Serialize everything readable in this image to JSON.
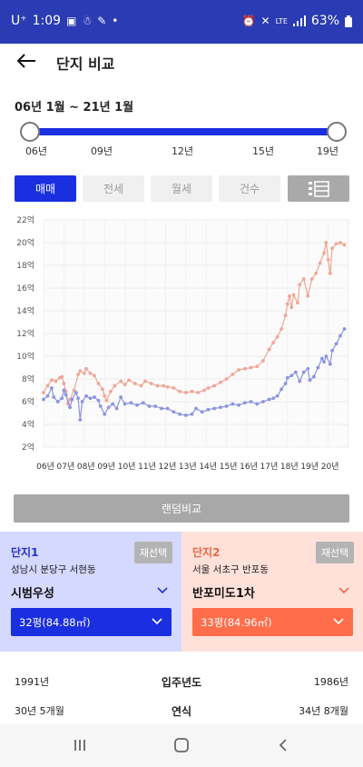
{
  "status_bar": {
    "carrier": "U⁺",
    "time": "1:09",
    "network": "LTE",
    "battery": "63%"
  },
  "app_bar": {
    "title": "단지 비교",
    "back_icon": "arrow-left-icon"
  },
  "range": {
    "label": "06년 1월 ~ 21년 1월",
    "ticks": [
      "06년",
      "09년",
      "12년",
      "15년",
      "19년"
    ]
  },
  "tabs": {
    "items": [
      "매매",
      "전세",
      "월세",
      "건수"
    ],
    "active": 0,
    "view_icon": "list-view-icon"
  },
  "chart_data": {
    "type": "line",
    "y_tick_labels": [
      "2억",
      "4억",
      "6억",
      "8억",
      "10억",
      "12억",
      "14억",
      "16억",
      "18억",
      "20억",
      "22억"
    ],
    "ylim": [
      2,
      22
    ],
    "x_tick_labels": [
      "06년",
      "07년",
      "08년",
      "09년",
      "10년",
      "11년",
      "12년",
      "13년",
      "14년",
      "15년",
      "16년",
      "17년",
      "18년",
      "19년",
      "20년"
    ],
    "xlim": [
      2006.0,
      2021.0
    ],
    "grid": true,
    "series": [
      {
        "color": "#f0a696",
        "points": [
          [
            2006.0,
            6.8
          ],
          [
            2006.2,
            7.4
          ],
          [
            2006.4,
            7.9
          ],
          [
            2006.6,
            7.8
          ],
          [
            2006.8,
            8.1
          ],
          [
            2006.9,
            8.2
          ],
          [
            2007.0,
            7.6
          ],
          [
            2007.1,
            6.9
          ],
          [
            2007.2,
            5.8
          ],
          [
            2007.3,
            6.2
          ],
          [
            2007.5,
            7.0
          ],
          [
            2007.7,
            8.4
          ],
          [
            2007.8,
            8.7
          ],
          [
            2008.0,
            8.5
          ],
          [
            2008.1,
            8.9
          ],
          [
            2008.3,
            8.5
          ],
          [
            2008.5,
            8.3
          ],
          [
            2008.7,
            7.6
          ],
          [
            2008.9,
            7.1
          ],
          [
            2009.0,
            6.5
          ],
          [
            2009.1,
            6.1
          ],
          [
            2009.3,
            6.9
          ],
          [
            2009.5,
            7.4
          ],
          [
            2009.8,
            7.8
          ],
          [
            2010.0,
            7.5
          ],
          [
            2010.2,
            7.9
          ],
          [
            2010.5,
            7.6
          ],
          [
            2010.8,
            7.4
          ],
          [
            2011.0,
            7.8
          ],
          [
            2011.3,
            7.6
          ],
          [
            2011.6,
            7.4
          ],
          [
            2011.9,
            7.4
          ],
          [
            2012.1,
            7.3
          ],
          [
            2012.4,
            7.2
          ],
          [
            2012.7,
            6.9
          ],
          [
            2013.0,
            6.8
          ],
          [
            2013.3,
            6.9
          ],
          [
            2013.6,
            6.8
          ],
          [
            2013.9,
            7.0
          ],
          [
            2014.1,
            7.2
          ],
          [
            2014.4,
            7.4
          ],
          [
            2014.7,
            7.7
          ],
          [
            2015.0,
            8.0
          ],
          [
            2015.3,
            8.4
          ],
          [
            2015.6,
            8.8
          ],
          [
            2015.9,
            8.9
          ],
          [
            2016.2,
            9.0
          ],
          [
            2016.5,
            9.1
          ],
          [
            2016.8,
            9.6
          ],
          [
            2017.1,
            10.6
          ],
          [
            2017.3,
            11.2
          ],
          [
            2017.5,
            11.7
          ],
          [
            2017.7,
            12.4
          ],
          [
            2017.9,
            13.6
          ],
          [
            2018.0,
            14.6
          ],
          [
            2018.1,
            15.3
          ],
          [
            2018.2,
            14.3
          ],
          [
            2018.3,
            15.4
          ],
          [
            2018.5,
            14.7
          ],
          [
            2018.6,
            16.3
          ],
          [
            2018.8,
            16.8
          ],
          [
            2019.0,
            15.3
          ],
          [
            2019.2,
            16.8
          ],
          [
            2019.4,
            17.3
          ],
          [
            2019.6,
            18.2
          ],
          [
            2019.8,
            19.1
          ],
          [
            2019.9,
            20.0
          ],
          [
            2020.0,
            18.5
          ],
          [
            2020.1,
            17.3
          ],
          [
            2020.2,
            19.5
          ],
          [
            2020.4,
            19.9
          ],
          [
            2020.6,
            20.0
          ],
          [
            2020.8,
            19.8
          ]
        ]
      },
      {
        "color": "#8c94e0",
        "points": [
          [
            2006.0,
            6.2
          ],
          [
            2006.2,
            6.5
          ],
          [
            2006.4,
            7.2
          ],
          [
            2006.5,
            6.4
          ],
          [
            2006.7,
            6.0
          ],
          [
            2006.9,
            6.3
          ],
          [
            2007.0,
            7.0
          ],
          [
            2007.1,
            6.6
          ],
          [
            2007.3,
            5.5
          ],
          [
            2007.4,
            6.2
          ],
          [
            2007.6,
            6.8
          ],
          [
            2007.7,
            6.3
          ],
          [
            2007.8,
            4.4
          ],
          [
            2007.9,
            6.0
          ],
          [
            2008.1,
            6.5
          ],
          [
            2008.3,
            6.3
          ],
          [
            2008.5,
            6.4
          ],
          [
            2008.7,
            6.1
          ],
          [
            2008.8,
            5.6
          ],
          [
            2009.0,
            4.9
          ],
          [
            2009.2,
            5.5
          ],
          [
            2009.4,
            5.8
          ],
          [
            2009.6,
            5.4
          ],
          [
            2009.8,
            6.4
          ],
          [
            2010.0,
            5.8
          ],
          [
            2010.3,
            5.9
          ],
          [
            2010.6,
            5.7
          ],
          [
            2010.9,
            5.9
          ],
          [
            2011.2,
            5.6
          ],
          [
            2011.5,
            5.6
          ],
          [
            2011.8,
            5.4
          ],
          [
            2012.1,
            5.4
          ],
          [
            2012.4,
            5.1
          ],
          [
            2012.7,
            4.9
          ],
          [
            2013.0,
            4.8
          ],
          [
            2013.3,
            4.9
          ],
          [
            2013.5,
            5.4
          ],
          [
            2013.8,
            5.1
          ],
          [
            2014.1,
            5.3
          ],
          [
            2014.4,
            5.4
          ],
          [
            2014.7,
            5.5
          ],
          [
            2015.0,
            5.6
          ],
          [
            2015.3,
            5.8
          ],
          [
            2015.6,
            5.7
          ],
          [
            2015.9,
            5.9
          ],
          [
            2016.2,
            6.0
          ],
          [
            2016.5,
            5.8
          ],
          [
            2016.8,
            6.0
          ],
          [
            2017.1,
            6.2
          ],
          [
            2017.3,
            6.3
          ],
          [
            2017.5,
            6.5
          ],
          [
            2017.7,
            7.1
          ],
          [
            2017.9,
            7.6
          ],
          [
            2018.0,
            8.1
          ],
          [
            2018.2,
            8.3
          ],
          [
            2018.4,
            8.6
          ],
          [
            2018.6,
            7.8
          ],
          [
            2018.8,
            8.6
          ],
          [
            2019.0,
            8.9
          ],
          [
            2019.1,
            7.9
          ],
          [
            2019.3,
            8.2
          ],
          [
            2019.5,
            9.0
          ],
          [
            2019.7,
            9.8
          ],
          [
            2019.8,
            9.5
          ],
          [
            2019.9,
            10.0
          ],
          [
            2020.1,
            9.3
          ],
          [
            2020.2,
            10.5
          ],
          [
            2020.4,
            11.1
          ],
          [
            2020.6,
            11.8
          ],
          [
            2020.8,
            12.4
          ]
        ]
      }
    ]
  },
  "random_compare_label": "랜덤비교",
  "complex1": {
    "heading": "단지1",
    "reselect": "재선택",
    "address": "성남시 분당구 서현동",
    "name": "시범우성",
    "size": "32평(84.88㎡)",
    "accent": "#1a2fe0"
  },
  "complex2": {
    "heading": "단지2",
    "reselect": "재선택",
    "address": "서울 서초구 반포동",
    "name": "반포미도1차",
    "size": "33평(84.96㎡)",
    "accent": "#ff6d4a"
  },
  "compare_rows": [
    {
      "label": "입주년도",
      "left": "1991년",
      "right": "1986년"
    },
    {
      "label": "연식",
      "left": "30년 5개월",
      "right": "34년 8개월"
    }
  ],
  "nav": {
    "recent_icon": "recent-apps-icon",
    "home_icon": "home-icon",
    "back_icon": "nav-back-icon"
  }
}
